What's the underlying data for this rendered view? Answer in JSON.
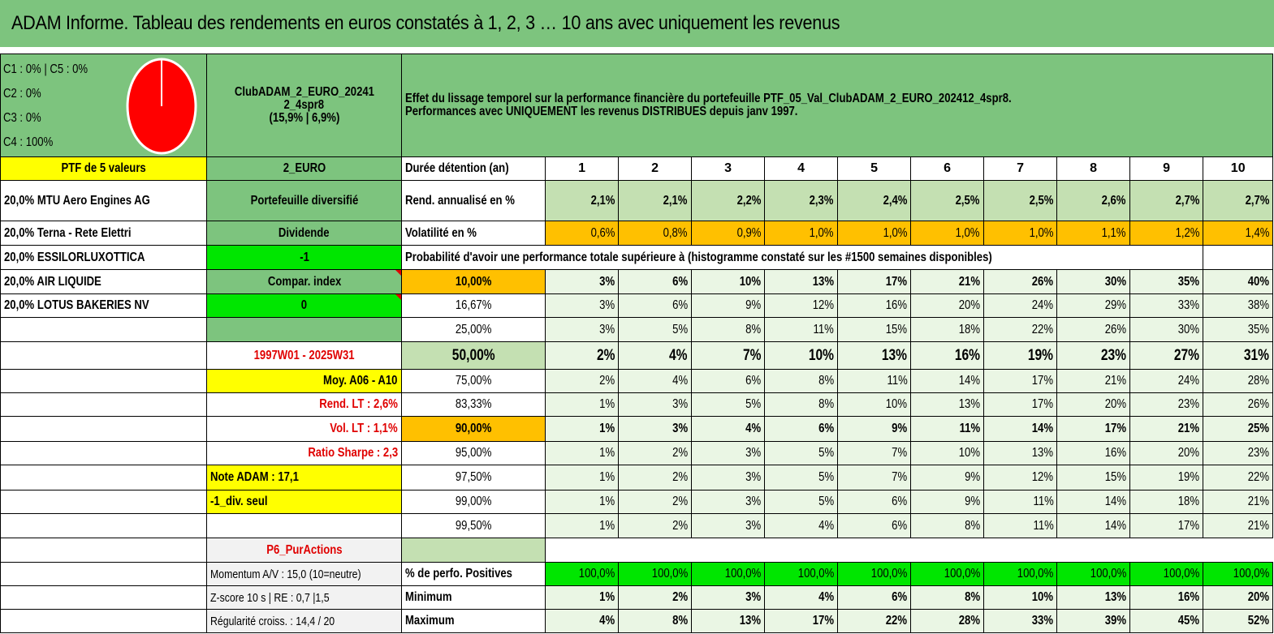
{
  "title": "ADAM Informe. Tableau des rendements en euros constatés à 1, 2, 3 … 10 ans avec uniquement les revenus",
  "allocation": {
    "line1": "C1 : 0% | C5 : 0%",
    "line2": "C2 : 0%",
    "line3": "C3 : 0%",
    "line4": "C4 : 100%",
    "pie_color": "#ff0000"
  },
  "portfolio": {
    "name_line1": "ClubADAM_2_EURO_20241",
    "name_line2": "2_4spr8",
    "name_line3": "(15,9% | 6,9%)",
    "description_line1": "Effet du lissage temporel sur la performance financière du portefeuille PTF_05_Val_ClubADAM_2_EURO_202412_4spr8.",
    "description_line2": "Performances avec UNIQUEMENT les revenus DISTRIBUES depuis janv 1997.",
    "count_label": "PTF de 5 valeurs",
    "currency": "2_EURO",
    "holdings": [
      "20,0% MTU Aero Engines AG",
      "20,0% Terna - Rete Elettri",
      "20,0% ESSILORLUXOTTICA",
      "20,0% AIR LIQUIDE",
      "20,0% LOTUS BAKERIES NV"
    ]
  },
  "middle": {
    "diversified": "Portefeuille diversifié",
    "dividend": "Dividende",
    "dividend_value": "-1",
    "compar_index": "Compar. index",
    "compar_value": "0",
    "period": "1997W01 - 2025W31",
    "moy": "Moy. A06 - A10",
    "rend_lt": "Rend. LT : 2,6%",
    "vol_lt": "Vol. LT : 1,1%",
    "sharpe": "Ratio Sharpe : 2,3",
    "note": "Note ADAM : 17,1",
    "div_seul": "-1_div. seul",
    "p6": "P6_PurActions",
    "momentum": "Momentum A/V : 15,0 (10=neutre)",
    "zscore": "Z-score 10 s | RE : 0,7 |1,5",
    "regularite": "Régularité croiss. : 14,4 / 20"
  },
  "table": {
    "duration_label": "Durée détention (an)",
    "years": [
      "1",
      "2",
      "3",
      "4",
      "5",
      "6",
      "7",
      "8",
      "9",
      "10"
    ],
    "rend_label": "Rend. annualisé en %",
    "rend_values": [
      "2,1%",
      "2,1%",
      "2,2%",
      "2,3%",
      "2,4%",
      "2,5%",
      "2,5%",
      "2,6%",
      "2,7%",
      "2,7%"
    ],
    "vol_label": "Volatilité en %",
    "vol_values": [
      "0,6%",
      "0,8%",
      "0,9%",
      "1,0%",
      "1,0%",
      "1,0%",
      "1,0%",
      "1,1%",
      "1,2%",
      "1,4%"
    ],
    "prob_label": "Probabilité d'avoir une performance totale supérieure à (histogramme constaté sur les #1500 semaines disponibles)",
    "prob_rows": [
      {
        "p": "10,00%",
        "v": [
          "3%",
          "6%",
          "10%",
          "13%",
          "17%",
          "21%",
          "26%",
          "30%",
          "35%",
          "40%"
        ]
      },
      {
        "p": "16,67%",
        "v": [
          "3%",
          "6%",
          "9%",
          "12%",
          "16%",
          "20%",
          "24%",
          "29%",
          "33%",
          "38%"
        ]
      },
      {
        "p": "25,00%",
        "v": [
          "3%",
          "5%",
          "8%",
          "11%",
          "15%",
          "18%",
          "22%",
          "26%",
          "30%",
          "35%"
        ]
      },
      {
        "p": "50,00%",
        "v": [
          "2%",
          "4%",
          "7%",
          "10%",
          "13%",
          "16%",
          "19%",
          "23%",
          "27%",
          "31%"
        ]
      },
      {
        "p": "75,00%",
        "v": [
          "2%",
          "4%",
          "6%",
          "8%",
          "11%",
          "14%",
          "17%",
          "21%",
          "24%",
          "28%"
        ]
      },
      {
        "p": "83,33%",
        "v": [
          "1%",
          "3%",
          "5%",
          "8%",
          "10%",
          "13%",
          "17%",
          "20%",
          "23%",
          "26%"
        ]
      },
      {
        "p": "90,00%",
        "v": [
          "1%",
          "3%",
          "4%",
          "6%",
          "9%",
          "11%",
          "14%",
          "17%",
          "21%",
          "25%"
        ]
      },
      {
        "p": "95,00%",
        "v": [
          "1%",
          "2%",
          "3%",
          "5%",
          "7%",
          "10%",
          "13%",
          "16%",
          "20%",
          "23%"
        ]
      },
      {
        "p": "97,50%",
        "v": [
          "1%",
          "2%",
          "3%",
          "5%",
          "7%",
          "9%",
          "12%",
          "15%",
          "19%",
          "22%"
        ]
      },
      {
        "p": "99,00%",
        "v": [
          "1%",
          "2%",
          "3%",
          "5%",
          "6%",
          "9%",
          "11%",
          "14%",
          "18%",
          "21%"
        ]
      },
      {
        "p": "99,50%",
        "v": [
          "1%",
          "2%",
          "3%",
          "4%",
          "6%",
          "8%",
          "11%",
          "14%",
          "17%",
          "21%"
        ]
      }
    ],
    "positive_label": "% de perfo. Positives",
    "positive_values": [
      "100,0%",
      "100,0%",
      "100,0%",
      "100,0%",
      "100,0%",
      "100,0%",
      "100,0%",
      "100,0%",
      "100,0%",
      "100,0%"
    ],
    "min_label": "Minimum",
    "min_values": [
      "1%",
      "2%",
      "3%",
      "4%",
      "6%",
      "8%",
      "10%",
      "13%",
      "16%",
      "20%"
    ],
    "max_label": "Maximum",
    "max_values": [
      "4%",
      "8%",
      "13%",
      "17%",
      "22%",
      "28%",
      "33%",
      "39%",
      "45%",
      "52%"
    ]
  }
}
